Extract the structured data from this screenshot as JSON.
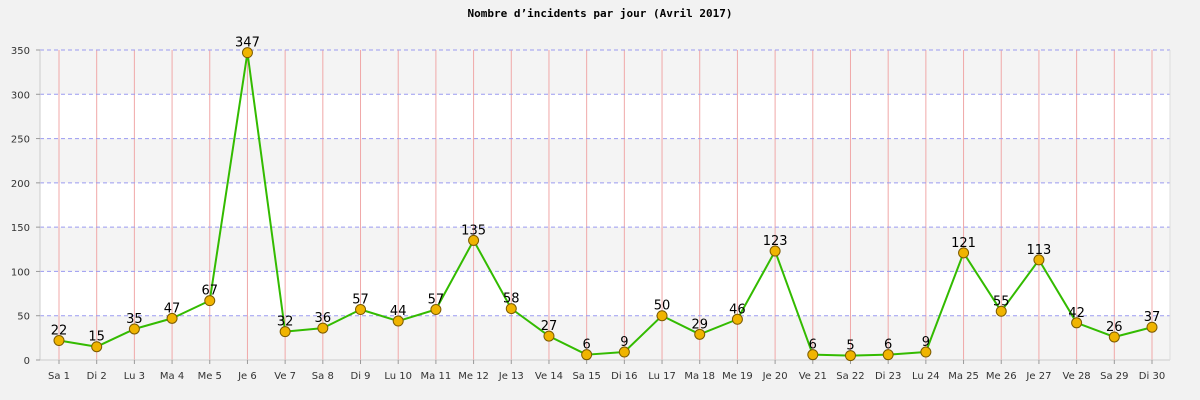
{
  "chart_data": {
    "type": "line",
    "title": "Nombre d’incidents par jour (Avril 2017)",
    "xlabel": "",
    "ylabel": "",
    "ylim": [
      0,
      350
    ],
    "yticks": [
      0,
      50,
      100,
      150,
      200,
      250,
      300,
      350
    ],
    "grid": true,
    "legend": "none",
    "categories": [
      "Sa 1",
      "Di 2",
      "Lu 3",
      "Ma 4",
      "Me 5",
      "Je 6",
      "Ve 7",
      "Sa 8",
      "Di 9",
      "Lu 10",
      "Ma 11",
      "Me 12",
      "Je 13",
      "Ve 14",
      "Sa 15",
      "Di 16",
      "Lu 17",
      "Ma 18",
      "Me 19",
      "Je 20",
      "Ve 21",
      "Sa 22",
      "Di 23",
      "Lu 24",
      "Ma 25",
      "Me 26",
      "Je 27",
      "Ve 28",
      "Sa 29",
      "Di 30"
    ],
    "series": [
      {
        "values": [
          22,
          15,
          35,
          47,
          67,
          347,
          32,
          36,
          57,
          44,
          57,
          135,
          58,
          27,
          6,
          9,
          50,
          29,
          46,
          123,
          6,
          5,
          6,
          9,
          121,
          55,
          113,
          42,
          26,
          37
        ]
      }
    ],
    "colors": {
      "line": "#33bb00",
      "marker_fill": "#f0b400",
      "marker_stroke": "#7a5a00",
      "horizontal_grid": "#9a9af0",
      "vertical_grid": "#f0a8a8",
      "plot_background": "#ffffff",
      "band_background": "#f4f4f4",
      "page_background": "#f2f2f2"
    }
  }
}
